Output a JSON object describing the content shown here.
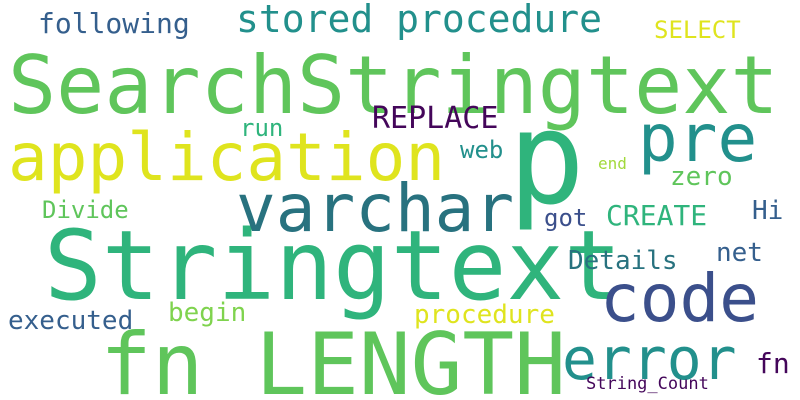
{
  "words": {
    "searchstringtext": "SearchStringtext",
    "stringtext": "Stringtext",
    "fn_length": "fn LENGTH",
    "p": "p",
    "application": "application",
    "varchar": "varchar",
    "pre": "pre",
    "code": "code",
    "error": "error",
    "stored_procedure": "stored procedure",
    "following": "following",
    "select": "SELECT",
    "replace": "REPLACE",
    "run": "run",
    "web": "web",
    "end": "end",
    "zero": "zero",
    "divide": "Divide",
    "got": "got",
    "create": "CREATE",
    "hi": "Hi",
    "net": "net",
    "details": "Details",
    "begin": "begin",
    "executed": "executed",
    "procedure": "procedure",
    "fn": "fn",
    "string_count": "String_Count"
  },
  "colors": {
    "green": "#5fc55b",
    "lightgreen": "#7fd34e",
    "yellowgreen": "#a2d93b",
    "yellow": "#dfe41e",
    "teal": "#22908c",
    "tealdark": "#28727f",
    "blue": "#355f8d",
    "indigo": "#3b4f8b",
    "purple": "#481d6f",
    "darkpurple": "#44065a",
    "emerald": "#2fb47c"
  }
}
